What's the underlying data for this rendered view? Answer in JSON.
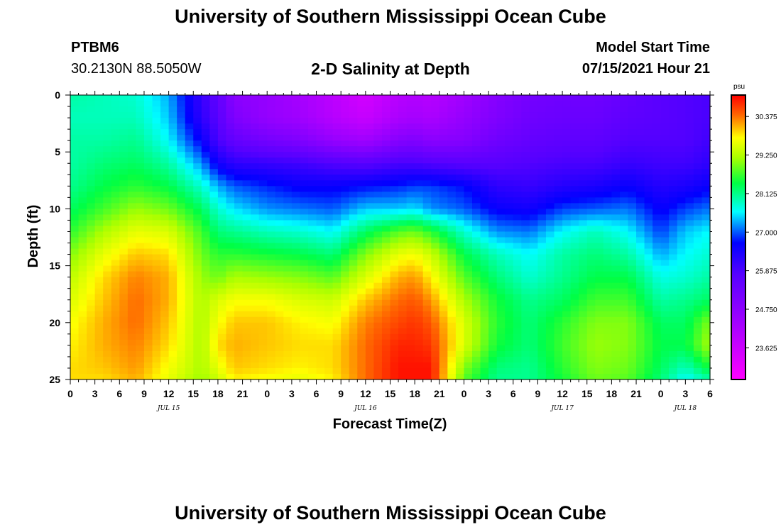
{
  "header": {
    "title": "University of Southern Mississippi Ocean Cube",
    "footer_title": "University of Southern Mississippi Ocean Cube",
    "station_id": "PTBM6",
    "station_coords": "30.2130N  88.5050W",
    "chart_title": "2-D Salinity at Depth",
    "model_start_label": "Model Start Time",
    "model_start_value": "07/15/2021 Hour 21"
  },
  "chart_data": {
    "type": "heatmap",
    "title": "2-D Salinity at Depth",
    "xlabel": "Forecast Time(Z)",
    "ylabel": "Depth (ft)",
    "colorbar_unit": "psu",
    "colorbar_ticks": [
      "30.375",
      "29.250",
      "28.125",
      "27.000",
      "25.875",
      "24.750",
      "23.625"
    ],
    "colorbar_range": [
      22.7,
      31.0
    ],
    "x_hours": [
      0,
      78
    ],
    "x_tick_labels": [
      "0",
      "3",
      "6",
      "9",
      "12",
      "15",
      "18",
      "21",
      "0",
      "3",
      "6",
      "9",
      "12",
      "15",
      "18",
      "21",
      "0",
      "3",
      "6",
      "9",
      "12",
      "15",
      "18",
      "21",
      "0",
      "3",
      "6"
    ],
    "date_labels": [
      {
        "label": "JUL 15",
        "hour": 12
      },
      {
        "label": "JUL 16",
        "hour": 36
      },
      {
        "label": "JUL 17",
        "hour": 60
      },
      {
        "label": "JUL 18",
        "hour": 75
      }
    ],
    "y_ticks": [
      "0",
      "5",
      "10",
      "15",
      "20",
      "25"
    ],
    "ylim": [
      0,
      25
    ],
    "times_hours": [
      0,
      4,
      8,
      12,
      16,
      18,
      20,
      24,
      28,
      32,
      36,
      40,
      42,
      44,
      48,
      52,
      56,
      60,
      64,
      68,
      72,
      75,
      78
    ],
    "depths_ft": [
      0,
      2,
      4,
      6,
      8,
      10,
      12,
      14,
      16,
      18,
      20,
      22,
      24,
      25
    ],
    "salinity_psu": [
      [
        28.0,
        27.9,
        28.0,
        28.0,
        28.1,
        28.3,
        28.6,
        29.0,
        29.3,
        29.5,
        29.7,
        29.8,
        29.9,
        29.9
      ],
      [
        27.9,
        27.9,
        28.0,
        28.2,
        28.4,
        28.7,
        29.2,
        29.6,
        29.9,
        30.0,
        30.1,
        30.1,
        30.0,
        29.9
      ],
      [
        27.8,
        27.9,
        28.1,
        28.3,
        28.6,
        29.1,
        29.6,
        30.0,
        30.3,
        30.4,
        30.4,
        30.3,
        30.2,
        30.1
      ],
      [
        27.3,
        27.4,
        27.6,
        28.0,
        28.4,
        28.9,
        29.5,
        29.9,
        30.1,
        30.1,
        30.0,
        29.9,
        29.7,
        29.6
      ],
      [
        26.1,
        26.2,
        26.6,
        27.2,
        27.8,
        28.3,
        28.7,
        28.9,
        29.1,
        29.2,
        29.2,
        29.2,
        29.2,
        29.1
      ],
      [
        25.6,
        25.7,
        25.9,
        26.5,
        27.3,
        27.8,
        28.2,
        28.6,
        28.9,
        29.5,
        29.7,
        29.9,
        29.6,
        29.4
      ],
      [
        24.8,
        25.0,
        25.5,
        26.2,
        27.0,
        27.5,
        28.1,
        28.6,
        29.2,
        29.7,
        30.0,
        30.1,
        30.0,
        29.8
      ],
      [
        24.6,
        24.6,
        25.2,
        26.1,
        26.8,
        27.2,
        27.9,
        28.5,
        29.1,
        29.7,
        30.0,
        30.0,
        29.9,
        29.7
      ],
      [
        24.3,
        24.4,
        25.0,
        26.0,
        26.6,
        27.1,
        27.8,
        28.4,
        29.0,
        29.5,
        29.8,
        29.9,
        29.8,
        29.6
      ],
      [
        23.9,
        24.0,
        24.6,
        25.8,
        26.6,
        27.0,
        27.6,
        28.2,
        28.8,
        29.4,
        29.7,
        29.9,
        29.9,
        29.8
      ],
      [
        23.5,
        23.7,
        24.4,
        25.7,
        26.7,
        27.4,
        28.3,
        29.0,
        29.5,
        30.0,
        30.3,
        30.4,
        30.4,
        30.4
      ],
      [
        24.0,
        24.2,
        24.9,
        25.9,
        26.8,
        27.4,
        28.8,
        29.6,
        30.1,
        30.4,
        30.6,
        30.8,
        30.9,
        30.9
      ],
      [
        24.1,
        24.3,
        25.0,
        25.9,
        26.9,
        27.5,
        28.9,
        29.7,
        30.2,
        30.5,
        30.7,
        30.8,
        30.9,
        30.9
      ],
      [
        24.0,
        24.2,
        24.8,
        25.8,
        26.9,
        27.2,
        28.6,
        29.4,
        29.8,
        30.2,
        30.5,
        30.7,
        30.9,
        30.9
      ],
      [
        24.4,
        24.6,
        24.9,
        25.7,
        26.7,
        27.0,
        27.8,
        28.4,
        28.8,
        29.2,
        29.5,
        29.5,
        29.0,
        28.8
      ],
      [
        24.9,
        25.0,
        25.3,
        25.7,
        26.2,
        26.6,
        27.2,
        27.9,
        28.2,
        28.5,
        28.6,
        28.5,
        28.2,
        28.1
      ],
      [
        25.2,
        25.3,
        25.5,
        25.8,
        26.1,
        26.5,
        27.1,
        27.6,
        27.8,
        28.1,
        28.2,
        28.2,
        28.1,
        28.1
      ],
      [
        25.3,
        25.4,
        25.6,
        25.9,
        26.3,
        26.9,
        27.6,
        28.0,
        28.1,
        28.3,
        28.6,
        28.7,
        28.6,
        28.5
      ],
      [
        25.3,
        25.4,
        25.6,
        25.9,
        26.4,
        27.0,
        27.9,
        28.2,
        28.4,
        28.7,
        29.0,
        29.1,
        29.0,
        28.9
      ],
      [
        25.5,
        25.6,
        25.8,
        26.1,
        26.6,
        27.1,
        27.6,
        28.0,
        28.4,
        28.7,
        29.0,
        29.0,
        28.9,
        28.8
      ],
      [
        25.7,
        25.7,
        25.8,
        26.0,
        26.3,
        26.6,
        26.9,
        27.3,
        27.7,
        28.0,
        28.3,
        28.4,
        28.3,
        28.2
      ],
      [
        25.8,
        25.8,
        25.8,
        26.0,
        26.4,
        26.9,
        27.4,
        27.6,
        27.8,
        28.1,
        28.3,
        28.4,
        27.9,
        27.6
      ],
      [
        25.9,
        25.9,
        26.0,
        26.2,
        26.6,
        27.1,
        27.6,
        27.8,
        28.0,
        28.3,
        29.0,
        29.2,
        28.5,
        28.0
      ]
    ]
  }
}
